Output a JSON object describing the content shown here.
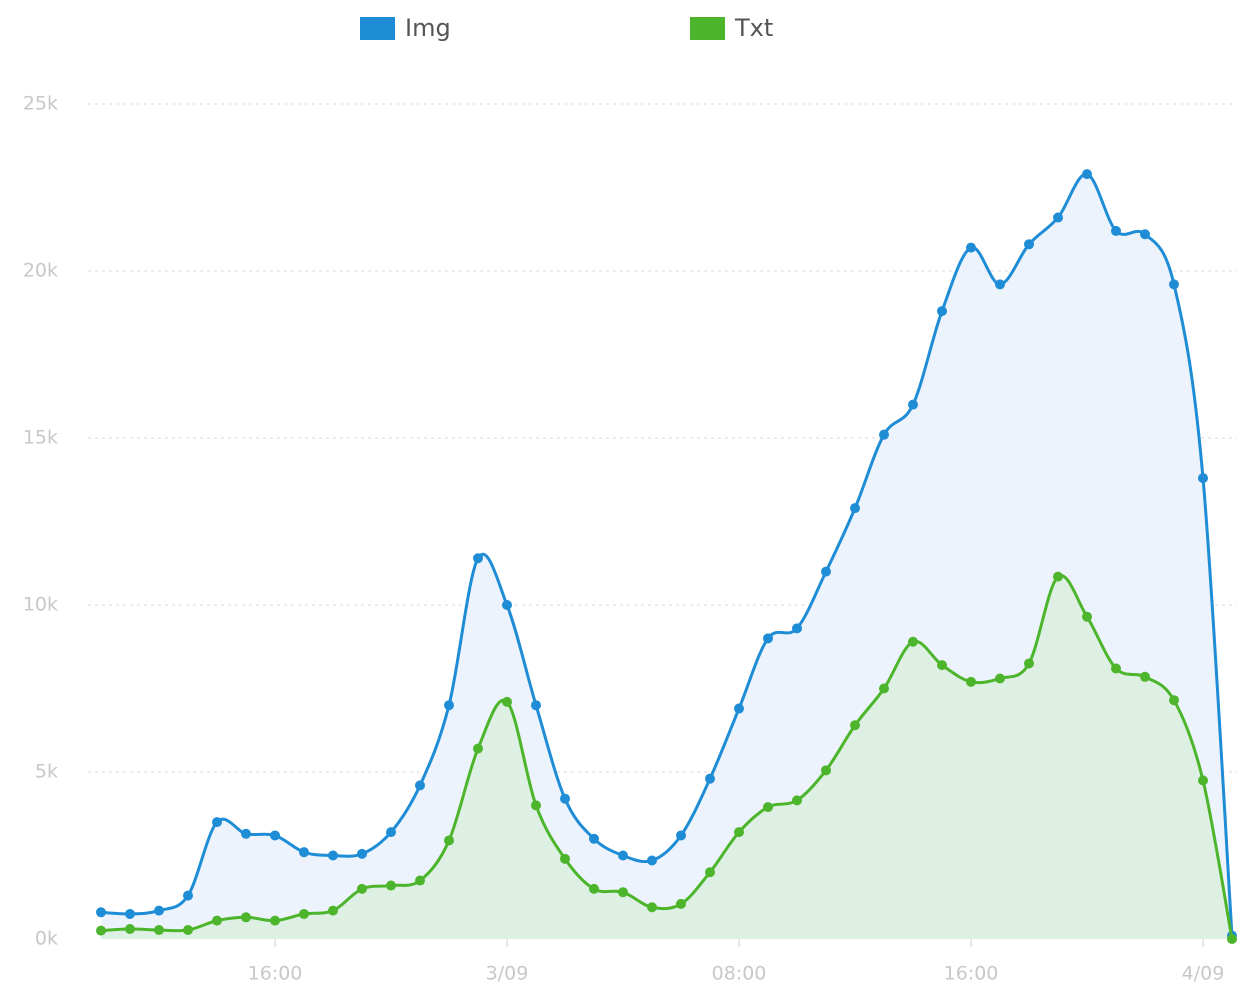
{
  "chart_data": {
    "type": "area",
    "categories": [
      null,
      null,
      null,
      null,
      null,
      null,
      "16:00",
      null,
      null,
      null,
      null,
      null,
      null,
      null,
      "3/09",
      null,
      null,
      null,
      null,
      null,
      null,
      null,
      "08:00",
      null,
      null,
      null,
      null,
      null,
      null,
      null,
      "16:00",
      null,
      null,
      null,
      null,
      null,
      null,
      null,
      "4/09",
      null
    ],
    "series": [
      {
        "name": "Img",
        "color": "#1f8dd6",
        "fill": "#e9f1fb",
        "values": [
          800,
          750,
          850,
          1300,
          3500,
          3150,
          3100,
          2600,
          2500,
          2550,
          3200,
          4600,
          7000,
          11400,
          10000,
          7000,
          4200,
          3000,
          2500,
          2350,
          3100,
          4800,
          6900,
          9000,
          9300,
          11000,
          12900,
          15100,
          16000,
          18800,
          20700,
          19600,
          20800,
          21600,
          22900,
          21200,
          21100,
          19600,
          13800,
          100
        ]
      },
      {
        "name": "Txt",
        "color": "#4cb52c",
        "fill": "#dcefdf",
        "values": [
          250,
          300,
          270,
          270,
          550,
          650,
          550,
          750,
          850,
          1500,
          1600,
          1750,
          2950,
          5700,
          7100,
          4000,
          2400,
          1500,
          1400,
          950,
          1050,
          2000,
          3200,
          3950,
          4150,
          5050,
          6400,
          7500,
          8900,
          8200,
          7700,
          7800,
          8250,
          10850,
          9650,
          8100,
          7850,
          7150,
          4750,
          0
        ]
      }
    ],
    "ylim": [
      0,
      25000
    ],
    "yticks": [
      {
        "value": 0,
        "label": "0k"
      },
      {
        "value": 5000,
        "label": "5k"
      },
      {
        "value": 10000,
        "label": "10k"
      },
      {
        "value": 15000,
        "label": "15k"
      },
      {
        "value": 20000,
        "label": "20k"
      },
      {
        "value": 25000,
        "label": "25k"
      }
    ],
    "grid": true,
    "legend": "top"
  }
}
